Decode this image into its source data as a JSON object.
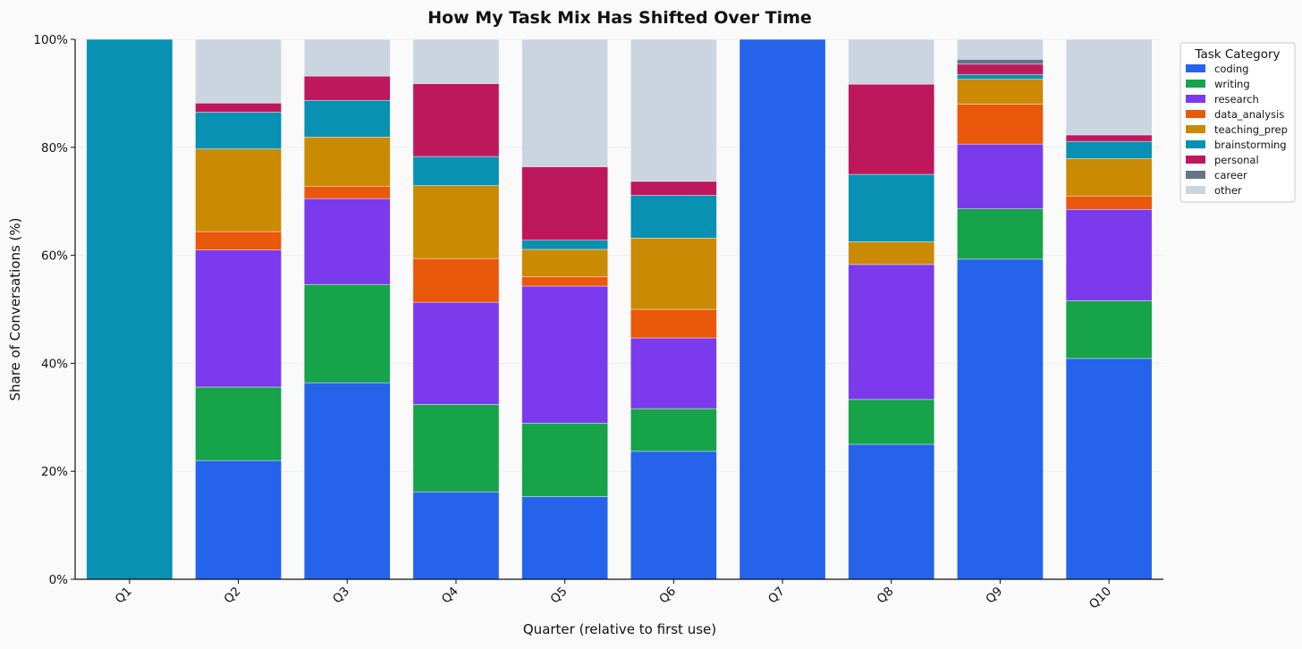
{
  "chart_data": {
    "type": "bar",
    "stacked": true,
    "title": "How My Task Mix Has Shifted Over Time",
    "xlabel": "Quarter (relative to first use)",
    "ylabel": "Share of Conversations (%)",
    "ylim": [
      0,
      100
    ],
    "yticks": [
      0,
      20,
      40,
      60,
      80,
      100
    ],
    "ytick_suffix": "%",
    "grid": "y",
    "legend": {
      "title": "Task Category",
      "placement": "top-right-outside"
    },
    "categories": [
      "Q1",
      "Q2",
      "Q3",
      "Q4",
      "Q5",
      "Q6",
      "Q7",
      "Q8",
      "Q9",
      "Q10"
    ],
    "series": [
      {
        "name": "coding",
        "color": "#2563eb",
        "values": [
          0,
          22.0,
          36.4,
          16.2,
          15.3,
          23.7,
          100,
          25.0,
          59.3,
          40.9
        ]
      },
      {
        "name": "writing",
        "color": "#16a34a",
        "values": [
          0,
          13.6,
          18.2,
          16.2,
          13.6,
          7.9,
          0,
          8.3,
          9.3,
          10.7
        ]
      },
      {
        "name": "research",
        "color": "#7c3aed",
        "values": [
          0,
          25.4,
          15.9,
          18.9,
          25.4,
          13.1,
          0,
          25.0,
          12.0,
          16.9
        ]
      },
      {
        "name": "data_analysis",
        "color": "#ea580c",
        "values": [
          0,
          3.4,
          2.3,
          8.1,
          1.7,
          5.3,
          0,
          0,
          7.4,
          2.5
        ]
      },
      {
        "name": "teaching_prep",
        "color": "#ca8a04",
        "values": [
          0,
          15.3,
          9.1,
          13.5,
          5.1,
          13.2,
          0,
          4.2,
          4.6,
          6.9
        ]
      },
      {
        "name": "brainstorming",
        "color": "#0891b2",
        "values": [
          100,
          6.8,
          6.8,
          5.4,
          1.7,
          7.9,
          0,
          12.5,
          0.9,
          3.2
        ]
      },
      {
        "name": "personal",
        "color": "#be185d",
        "values": [
          0,
          1.7,
          4.5,
          13.5,
          13.6,
          2.6,
          0,
          16.7,
          1.9,
          1.2
        ]
      },
      {
        "name": "career",
        "color": "#64748b",
        "values": [
          0,
          0,
          0,
          0,
          0,
          0,
          0,
          0,
          0.9,
          0
        ]
      },
      {
        "name": "other",
        "color": "#cbd5e1",
        "values": [
          0,
          11.8,
          6.8,
          8.2,
          23.6,
          26.3,
          0,
          8.3,
          3.7,
          17.7
        ]
      }
    ]
  }
}
